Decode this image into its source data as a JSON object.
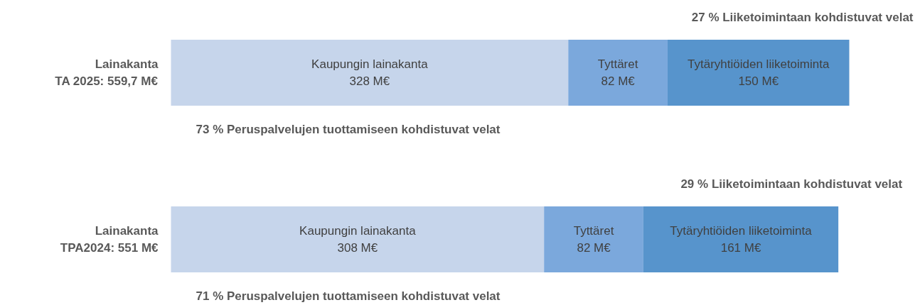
{
  "chart_data": {
    "type": "bar",
    "orientation": "horizontal",
    "stacked": true,
    "grid": false,
    "categories": [
      "Lainakanta\nTA 2025: 559,7 M€",
      "Lainakanta\nTPA2024: 551 M€"
    ],
    "series": [
      {
        "name": "Kaupungin lainakanta",
        "color": "#c6d5eb",
        "values": [
          328,
          308
        ],
        "value_labels": [
          "328 M€",
          "308 M€"
        ]
      },
      {
        "name": "Tyttäret",
        "color": "#7ba8dc",
        "values": [
          82,
          82
        ],
        "value_labels": [
          "82 M€",
          "82 M€"
        ]
      },
      {
        "name": "Tytäryhtiöiden liiketoiminta",
        "color": "#5794cc",
        "values": [
          150,
          161
        ],
        "value_labels": [
          "150 M€",
          "161 M€"
        ]
      }
    ],
    "annotations": [
      "27 % Liiketoimintaan kohdistuvat velat",
      "73 % Peruspalvelujen tuottamiseen kohdistuvat velat",
      "29 % Liiketoimintaan kohdistuvat velat",
      "71 % Peruspalvelujen tuottamiseen kohdistuvat velat"
    ]
  }
}
